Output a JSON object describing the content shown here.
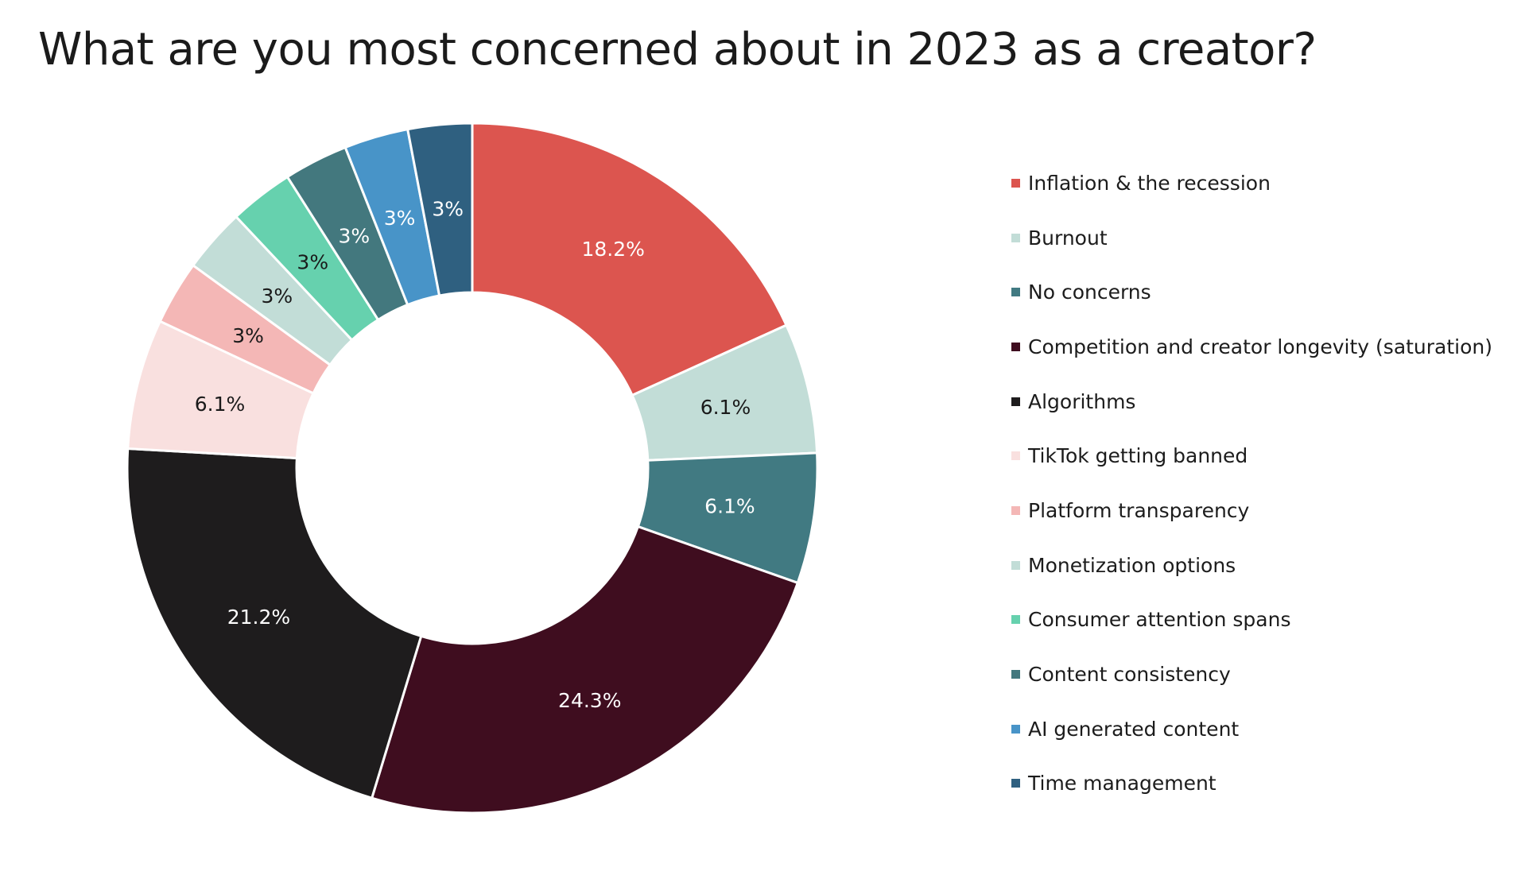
{
  "chart_data": {
    "type": "pie",
    "variant": "donut",
    "title": "What are you most concerned about in 2023 as a creator?",
    "legend_position": "right",
    "slices": [
      {
        "label": "Inflation & the recession",
        "value": 18.2,
        "data_label": "18.2%",
        "color": "#DC554F"
      },
      {
        "label": "Burnout",
        "value": 6.1,
        "data_label": "6.1%",
        "color": "#C2DDD7"
      },
      {
        "label": "No concerns",
        "value": 6.1,
        "data_label": "6.1%",
        "color": "#417A82"
      },
      {
        "label": "Competition and creator longevity (saturation)",
        "value": 24.3,
        "data_label": "24.3%",
        "color": "#3F0D1F"
      },
      {
        "label": "Algorithms",
        "value": 21.2,
        "data_label": "21.2%",
        "color": "#1E1C1D"
      },
      {
        "label": "TikTok getting banned",
        "value": 6.1,
        "data_label": "6.1%",
        "color": "#F9E0DF"
      },
      {
        "label": "Platform transparency",
        "value": 3,
        "data_label": "3%",
        "color": "#F4B7B6"
      },
      {
        "label": "Monetization options",
        "value": 3,
        "data_label": "3%",
        "color": "#C2DDD7"
      },
      {
        "label": "Consumer attention spans",
        "value": 3,
        "data_label": "3%",
        "color": "#66D1AE"
      },
      {
        "label": "Content consistency",
        "value": 3,
        "data_label": "3%",
        "color": "#43787E"
      },
      {
        "label": "AI generated content",
        "value": 3,
        "data_label": "3%",
        "color": "#4894C8"
      },
      {
        "label": "Time management",
        "value": 3,
        "data_label": "3%",
        "color": "#2F6080"
      }
    ]
  }
}
